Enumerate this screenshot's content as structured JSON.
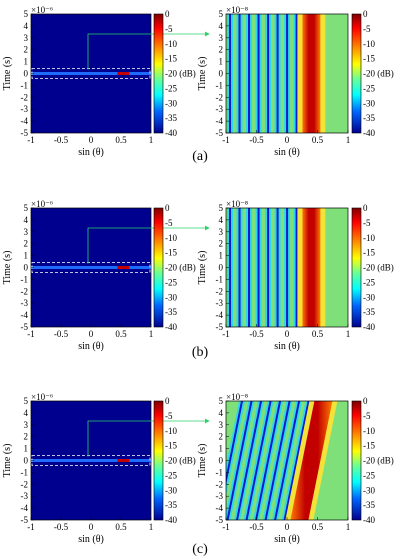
{
  "figure": {
    "panels": [
      {
        "caption": "(a)",
        "left_title_exponent": "×10⁻⁶",
        "right_title_exponent": "×10⁻⁸",
        "ylabel": "Time (s)",
        "xlabel": "sin (θ)",
        "x_ticks": [
          "-1",
          "-0.5",
          "0",
          "0.5",
          "1"
        ],
        "y_ticks": [
          "5",
          "4",
          "3",
          "2",
          "1",
          "0",
          "-1",
          "-2",
          "-3",
          "-4",
          "-5"
        ],
        "colorbar_ticks": [
          "0",
          "-5",
          "-10",
          "-15",
          "-20 (dB)",
          "-25",
          "-30",
          "-35",
          "-40"
        ],
        "right_stripe_tilt": 0
      },
      {
        "caption": "(b)",
        "left_title_exponent": "×10⁻⁶",
        "right_title_exponent": "×10⁻⁸",
        "ylabel": "Time (s)",
        "xlabel": "sin (θ)",
        "x_ticks": [
          "-1",
          "-0.5",
          "0",
          "0.5",
          "1"
        ],
        "y_ticks": [
          "5",
          "4",
          "3",
          "2",
          "1",
          "0",
          "-1",
          "-2",
          "-3",
          "-4",
          "-5"
        ],
        "colorbar_ticks": [
          "0",
          "-5",
          "-10",
          "-15",
          "-20 (dB)",
          "-25",
          "-30",
          "-35",
          "-40"
        ],
        "right_stripe_tilt": 0
      },
      {
        "caption": "(c)",
        "left_title_exponent": "×10⁻⁶",
        "right_title_exponent": "×10⁻⁸",
        "ylabel": "Time (s)",
        "xlabel": "sin (θ)",
        "x_ticks": [
          "-1",
          "-0.5",
          "0",
          "0.5",
          "1"
        ],
        "y_ticks": [
          "5",
          "4",
          "3",
          "2",
          "1",
          "0",
          "-1",
          "-2",
          "-3",
          "-4",
          "-5"
        ],
        "colorbar_ticks": [
          "0",
          "-5",
          "-10",
          "-15",
          "-20 (dB)",
          "-25",
          "-30",
          "-35",
          "-40"
        ],
        "right_stripe_tilt": 1
      }
    ],
    "colors": {
      "background_dark_blue": "#00008f",
      "stripe_blue": "#0a1acc",
      "stripe_cyan": "#2fd7e8",
      "stripe_green": "#7fe07a",
      "stripe_yellow": "#f2e23a",
      "peak_red": "#c20000",
      "peak_orange": "#ff7a00",
      "zoom_box": "#2bd16a",
      "dashed_box": "#ffffff"
    }
  }
}
